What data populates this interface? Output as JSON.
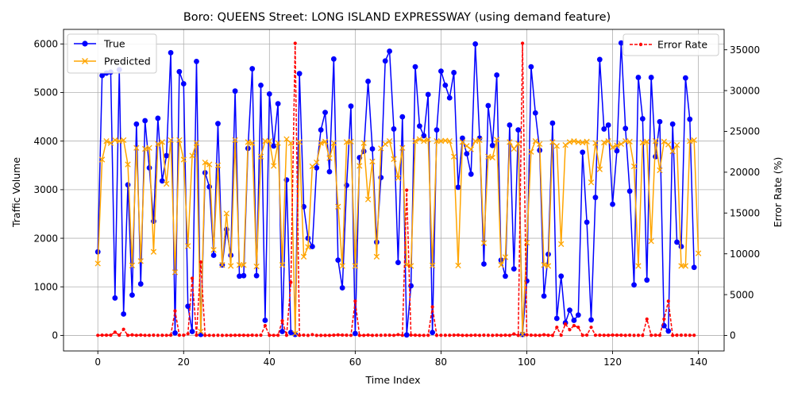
{
  "chart_data": {
    "type": "line",
    "title": "Boro: QUEENS Street: LONG ISLAND EXPRESSWAY (using demand feature)",
    "xlabel": "Time Index",
    "ylabel": "Traffic Volume",
    "y2label": "Error Rate (%)",
    "xlim": [
      -8,
      146
    ],
    "ylim": [
      -320,
      6300
    ],
    "y2lim": [
      -1900,
      37500
    ],
    "xticks": [
      0,
      20,
      40,
      60,
      80,
      100,
      120,
      140
    ],
    "yticks": [
      0,
      1000,
      2000,
      3000,
      4000,
      5000,
      6000
    ],
    "y2ticks": [
      0,
      5000,
      10000,
      15000,
      20000,
      25000,
      30000,
      35000
    ],
    "grid": true,
    "legend_left": "top-left",
    "legend_right": "top-right",
    "colors": {
      "true": "#0000ff",
      "predicted": "#ffa500",
      "error": "#ff0000"
    },
    "series": [
      {
        "name": "True",
        "axis": "left",
        "marker": "circle",
        "values": [
          1720,
          5350,
          5400,
          5420,
          770,
          5470,
          440,
          3100,
          830,
          4350,
          1060,
          4420,
          3450,
          2350,
          4470,
          3180,
          3700,
          5820,
          50,
          5430,
          5180,
          600,
          80,
          5640,
          20,
          3350,
          3060,
          1650,
          4360,
          1450,
          2180,
          1650,
          5030,
          1220,
          1230,
          3850,
          5490,
          1230,
          5150,
          310,
          4970,
          3900,
          4770,
          80,
          3200,
          60,
          20,
          5390,
          2650,
          2000,
          1830,
          3450,
          4230,
          4590,
          3370,
          5690,
          1550,
          980,
          3090,
          4720,
          40,
          3660,
          3790,
          5230,
          3840,
          1920,
          3250,
          5650,
          5850,
          4250,
          1500,
          4500,
          10,
          1020,
          5530,
          4310,
          4110,
          4960,
          60,
          4230,
          5440,
          5150,
          4890,
          5410,
          3050,
          4060,
          3740,
          3320,
          6000,
          4060,
          1470,
          4730,
          3910,
          5360,
          1550,
          1220,
          4330,
          1370,
          4230,
          20,
          1120,
          5530,
          4580,
          3810,
          810,
          1670,
          4370,
          350,
          1220,
          260,
          520,
          310,
          420,
          3770,
          2330,
          320,
          2840,
          5680,
          4250,
          4330,
          2700,
          3800,
          6020,
          4260,
          2970,
          1040,
          5310,
          4460,
          1140,
          5310,
          3680,
          4400,
          200,
          90,
          4350,
          1920,
          1830,
          5300,
          4450,
          1400
        ]
      },
      {
        "name": "Predicted",
        "axis": "left",
        "marker": "x",
        "values": [
          1480,
          3620,
          4000,
          3960,
          4020,
          4000,
          4020,
          3520,
          1440,
          3860,
          1530,
          3840,
          3860,
          1720,
          3940,
          3980,
          3120,
          4020,
          1300,
          4020,
          3620,
          1840,
          3700,
          3960,
          80,
          3560,
          3520,
          1760,
          3500,
          1450,
          2510,
          1430,
          4020,
          1450,
          1450,
          3980,
          3960,
          1420,
          3680,
          4000,
          4000,
          3490,
          3960,
          1450,
          4040,
          3960,
          40,
          3980,
          1620,
          1820,
          3480,
          3560,
          3960,
          3990,
          3650,
          3960,
          2650,
          1430,
          3980,
          3990,
          1430,
          3490,
          3960,
          2800,
          3580,
          1620,
          3850,
          3940,
          4000,
          3630,
          3240,
          3860,
          1450,
          1430,
          4000,
          4040,
          4000,
          4030,
          1440,
          4000,
          4000,
          4010,
          4000,
          3680,
          1440,
          3980,
          3900,
          3830,
          4000,
          4020,
          1900,
          3680,
          3660,
          4030,
          1450,
          1610,
          3980,
          3840,
          3950,
          20,
          1910,
          3780,
          4000,
          3940,
          1450,
          1430,
          3980,
          3900,
          1880,
          3920,
          3980,
          4000,
          3980,
          3970,
          3990,
          3150,
          3960,
          3420,
          3970,
          4000,
          3870,
          3910,
          3940,
          4000,
          3990,
          3480,
          1430,
          3970,
          3990,
          1940,
          4000,
          3400,
          3990,
          3930,
          3790,
          3920,
          1430,
          1430,
          4000,
          4020,
          1690
        ]
      },
      {
        "name": "Error Rate",
        "axis": "right",
        "marker": "point",
        "style": "dashed",
        "values": [
          15,
          30,
          30,
          30,
          400,
          30,
          750,
          15,
          70,
          15,
          50,
          15,
          15,
          30,
          15,
          25,
          15,
          30,
          3000,
          30,
          35,
          200,
          7000,
          35,
          9000,
          10,
          15,
          10,
          20,
          10,
          15,
          10,
          20,
          20,
          20,
          10,
          30,
          15,
          30,
          1200,
          20,
          15,
          20,
          1800,
          20,
          6500,
          35800,
          25,
          40,
          10,
          100,
          10,
          10,
          10,
          10,
          30,
          70,
          50,
          30,
          15,
          4200,
          10,
          10,
          50,
          10,
          20,
          20,
          30,
          30,
          15,
          100,
          15,
          17800,
          40,
          30,
          10,
          10,
          20,
          3500,
          10,
          20,
          20,
          20,
          30,
          50,
          10,
          10,
          15,
          30,
          10,
          30,
          20,
          10,
          30,
          10,
          30,
          10,
          180,
          10,
          35800,
          80,
          30,
          20,
          10,
          80,
          20,
          10,
          1000,
          30,
          1400,
          700,
          1200,
          1000,
          20,
          50,
          1000,
          30,
          30,
          20,
          20,
          50,
          30,
          30,
          10,
          30,
          10,
          20,
          10,
          2000,
          20,
          30,
          20,
          2000,
          4200,
          10,
          30,
          30,
          30,
          20,
          20
        ]
      }
    ]
  }
}
